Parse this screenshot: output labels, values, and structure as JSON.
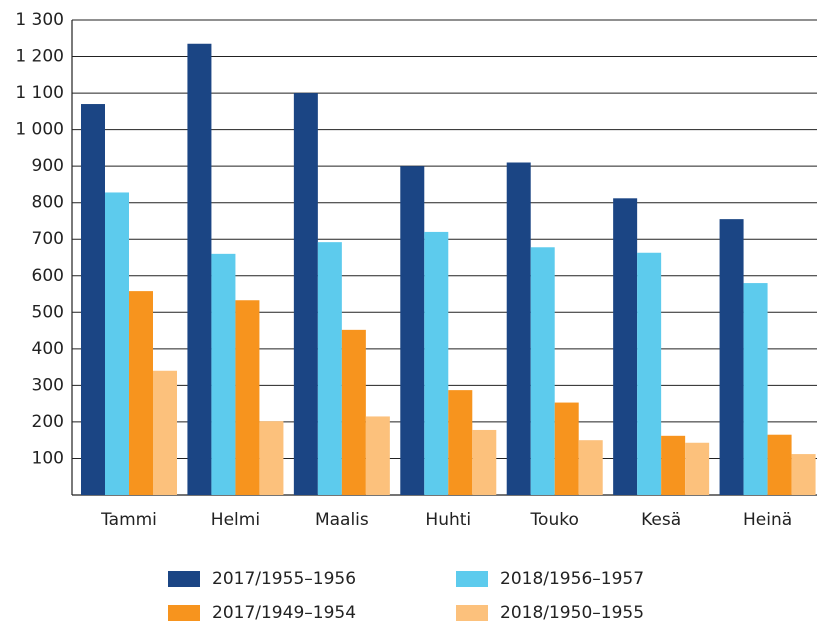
{
  "chart_data": {
    "type": "bar",
    "categories": [
      "Tammi",
      "Helmi",
      "Maalis",
      "Huhti",
      "Touko",
      "Kesä",
      "Heinä"
    ],
    "series": [
      {
        "name": "2017/1955–1956",
        "color": "#1b4584",
        "values": [
          1070,
          1235,
          1100,
          900,
          910,
          812,
          755
        ]
      },
      {
        "name": "2018/1956–1957",
        "color": "#5dcbed",
        "values": [
          828,
          660,
          692,
          720,
          678,
          663,
          580
        ]
      },
      {
        "name": "2017/1949–1954",
        "color": "#f7941e",
        "values": [
          558,
          533,
          452,
          287,
          253,
          162,
          165
        ]
      },
      {
        "name": "2018/1950–1955",
        "color": "#fcc17c",
        "values": [
          340,
          202,
          215,
          178,
          150,
          143,
          112
        ]
      }
    ],
    "ylim": [
      0,
      1300
    ],
    "yticks": [
      100,
      200,
      300,
      400,
      500,
      600,
      700,
      800,
      900,
      {
        "value": 1000,
        "label": "1 000"
      },
      {
        "value": 1100,
        "label": "1 100"
      },
      {
        "value": 1200,
        "label": "1 200"
      },
      {
        "value": 1300,
        "label": "1 300"
      }
    ],
    "grid": true
  }
}
